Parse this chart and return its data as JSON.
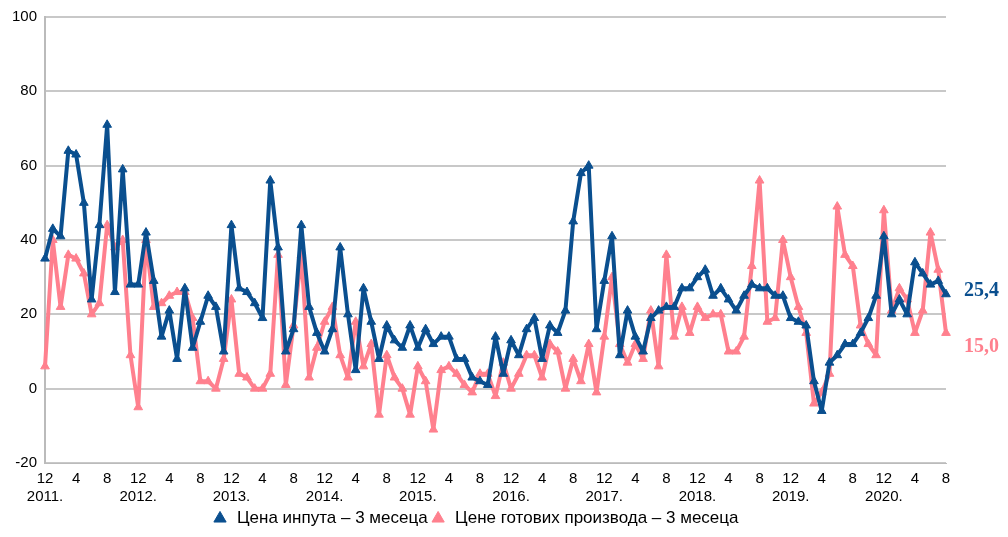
{
  "chart_data": {
    "type": "line",
    "categories": [
      "12\n2011.",
      null,
      null,
      null,
      "4",
      null,
      null,
      null,
      "8",
      null,
      null,
      null,
      "12\n2012.",
      null,
      null,
      null,
      "4",
      null,
      null,
      null,
      "8",
      null,
      null,
      null,
      "12\n2013.",
      null,
      null,
      null,
      "4",
      null,
      null,
      null,
      "8",
      null,
      null,
      null,
      "12\n2014.",
      null,
      null,
      null,
      "4",
      null,
      null,
      null,
      "8",
      null,
      null,
      null,
      "12\n2015.",
      null,
      null,
      null,
      "4",
      null,
      null,
      null,
      "8",
      null,
      null,
      null,
      "12\n2016.",
      null,
      null,
      null,
      "4",
      null,
      null,
      null,
      "8",
      null,
      null,
      null,
      "12\n2017.",
      null,
      null,
      null,
      "4",
      null,
      null,
      null,
      "8",
      null,
      null,
      null,
      "12\n2018.",
      null,
      null,
      null,
      "4",
      null,
      null,
      null,
      "8",
      null,
      null,
      null,
      "12\n2019.",
      null,
      null,
      null,
      "4",
      null,
      null,
      null,
      "8",
      null,
      null,
      null,
      "12\n2020.",
      null,
      null,
      null,
      "4",
      null,
      null,
      null,
      "8"
    ],
    "series": [
      {
        "name": "Цена инпута – 3 месеца",
        "color": "#0a4f8f",
        "values": [
          35,
          43,
          41,
          64,
          63,
          50,
          24,
          44,
          71,
          26,
          59,
          28,
          28,
          42,
          29,
          14,
          21,
          8,
          27,
          11,
          18,
          25,
          22,
          10,
          44,
          27,
          26,
          23,
          19,
          56,
          38,
          10,
          16,
          44,
          22,
          15,
          10,
          16,
          38,
          20,
          5,
          27,
          18,
          8,
          17,
          13,
          11,
          17,
          11,
          16,
          12,
          14,
          14,
          8,
          8,
          3,
          2,
          1,
          14,
          4,
          13,
          9,
          16,
          19,
          8,
          17,
          15,
          21,
          45,
          58,
          60,
          16,
          29,
          41,
          9,
          21,
          14,
          10,
          19,
          21,
          22,
          22,
          27,
          27,
          30,
          32,
          25,
          27,
          24,
          21,
          25,
          28,
          27,
          27,
          25,
          25,
          19,
          18,
          17,
          2,
          -6,
          7,
          9,
          12,
          12,
          15,
          19,
          25,
          41,
          20,
          24,
          20,
          34,
          31,
          28,
          29,
          25.4
        ],
        "value_labels": [
          null,
          null,
          null,
          null,
          null,
          null,
          null,
          null,
          null,
          null,
          null,
          null,
          null,
          null,
          null,
          null,
          null,
          null,
          null,
          null,
          null,
          null,
          null,
          null,
          null,
          null,
          null,
          null,
          null,
          null,
          null,
          null,
          null,
          null,
          null,
          null,
          null,
          null,
          null,
          null,
          null,
          null,
          null,
          null,
          null,
          null,
          null,
          null,
          null,
          null,
          null,
          null,
          null,
          null,
          null,
          null,
          null,
          null,
          null,
          null,
          null,
          null,
          null,
          null,
          null,
          null,
          null,
          null,
          null,
          null,
          null,
          null,
          null,
          null,
          null,
          null,
          null,
          null,
          null,
          null,
          null,
          null,
          null,
          null,
          null,
          null,
          null,
          null,
          null,
          null,
          null,
          null,
          null,
          null,
          null,
          null,
          null,
          null,
          null,
          null,
          null,
          null,
          null,
          null,
          null,
          null,
          null,
          null,
          null,
          null,
          null,
          null,
          null,
          null,
          null,
          null,
          "25,4"
        ]
      },
      {
        "name": "Цене готових производа – 3 месеца",
        "color": "#ff808e",
        "values": [
          6,
          40,
          22,
          36,
          35,
          31,
          20,
          23,
          44,
          38,
          40,
          9,
          -5,
          40,
          22,
          23,
          25,
          26,
          26,
          19,
          2,
          2,
          0,
          8,
          24,
          4,
          3,
          0,
          0,
          4,
          36,
          1,
          17,
          36,
          3,
          11,
          18,
          22,
          9,
          3,
          18,
          6,
          12,
          -7,
          9,
          3,
          0,
          -7,
          6,
          2,
          -11,
          5,
          6,
          4,
          1,
          -1,
          4,
          4,
          -2,
          7,
          0,
          4,
          9,
          9,
          3,
          12,
          10,
          0,
          8,
          2,
          12,
          -1,
          14,
          30,
          12,
          7,
          12,
          8,
          21,
          6,
          36,
          14,
          22,
          15,
          22,
          19,
          20,
          20,
          10,
          10,
          14,
          33,
          56,
          18,
          19,
          40,
          30,
          22,
          15,
          -4,
          -1,
          4,
          49,
          36,
          33,
          17,
          12,
          9,
          48,
          21,
          27,
          24,
          15,
          21,
          42,
          32,
          15.0
        ],
        "value_labels": [
          null,
          null,
          null,
          null,
          null,
          null,
          null,
          null,
          null,
          null,
          null,
          null,
          null,
          null,
          null,
          null,
          null,
          null,
          null,
          null,
          null,
          null,
          null,
          null,
          null,
          null,
          null,
          null,
          null,
          null,
          null,
          null,
          null,
          null,
          null,
          null,
          null,
          null,
          null,
          null,
          null,
          null,
          null,
          null,
          null,
          null,
          null,
          null,
          null,
          null,
          null,
          null,
          null,
          null,
          null,
          null,
          null,
          null,
          null,
          null,
          null,
          null,
          null,
          null,
          null,
          null,
          null,
          null,
          null,
          null,
          null,
          null,
          null,
          null,
          null,
          null,
          null,
          null,
          null,
          null,
          null,
          null,
          null,
          null,
          null,
          null,
          null,
          null,
          null,
          null,
          null,
          null,
          null,
          null,
          null,
          null,
          null,
          null,
          null,
          null,
          null,
          null,
          null,
          null,
          null,
          null,
          null,
          null,
          null,
          null,
          null,
          null,
          null,
          null,
          null,
          null,
          "15,0"
        ]
      }
    ],
    "ylim": [
      -20,
      100
    ],
    "yticks": [
      -20,
      0,
      20,
      40,
      60,
      80,
      100
    ],
    "grid": "y",
    "legend": "bottom",
    "marker": "triangle",
    "line_style": "solid"
  }
}
